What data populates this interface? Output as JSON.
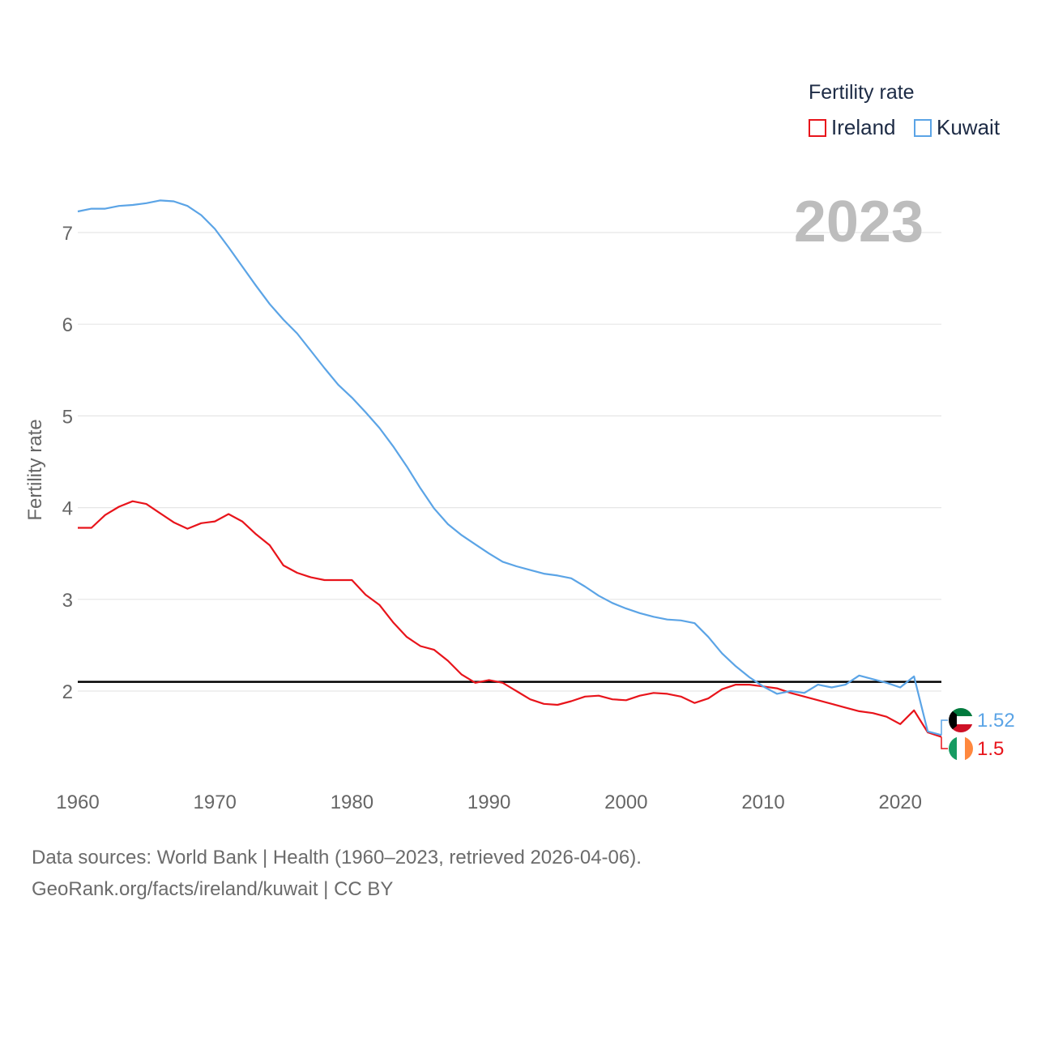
{
  "chart_data": {
    "type": "line",
    "year_label": "2023",
    "ylabel": "Fertility rate",
    "xlabel": "",
    "xlim": [
      1960,
      2023
    ],
    "ylim": [
      1.1,
      7.6
    ],
    "x_ticks": [
      1960,
      1970,
      1980,
      1990,
      2000,
      2010,
      2020
    ],
    "y_ticks": [
      2,
      3,
      4,
      5,
      6,
      7
    ],
    "reference_line": 2.1,
    "legend": {
      "title": "Fertility rate",
      "placement": "top-right"
    },
    "x": [
      1960,
      1961,
      1962,
      1963,
      1964,
      1965,
      1966,
      1967,
      1968,
      1969,
      1970,
      1971,
      1972,
      1973,
      1974,
      1975,
      1976,
      1977,
      1978,
      1979,
      1980,
      1981,
      1982,
      1983,
      1984,
      1985,
      1986,
      1987,
      1988,
      1989,
      1990,
      1991,
      1992,
      1993,
      1994,
      1995,
      1996,
      1997,
      1998,
      1999,
      2000,
      2001,
      2002,
      2003,
      2004,
      2005,
      2006,
      2007,
      2008,
      2009,
      2010,
      2011,
      2012,
      2013,
      2014,
      2015,
      2016,
      2017,
      2018,
      2019,
      2020,
      2021,
      2022,
      2023
    ],
    "series": [
      {
        "name": "Ireland",
        "color": "#e8141b",
        "end_label": "1.5",
        "values": [
          3.78,
          3.78,
          3.92,
          4.01,
          4.07,
          4.04,
          3.94,
          3.84,
          3.77,
          3.83,
          3.85,
          3.93,
          3.85,
          3.71,
          3.59,
          3.37,
          3.29,
          3.24,
          3.21,
          3.21,
          3.21,
          3.05,
          2.94,
          2.75,
          2.59,
          2.49,
          2.45,
          2.33,
          2.18,
          2.09,
          2.12,
          2.09,
          2.0,
          1.91,
          1.86,
          1.85,
          1.89,
          1.94,
          1.95,
          1.91,
          1.9,
          1.95,
          1.98,
          1.97,
          1.94,
          1.87,
          1.92,
          2.02,
          2.07,
          2.07,
          2.05,
          2.03,
          1.98,
          1.94,
          1.9,
          1.86,
          1.82,
          1.78,
          1.76,
          1.72,
          1.64,
          1.79,
          1.55,
          1.5
        ]
      },
      {
        "name": "Kuwait",
        "color": "#5ba4e6",
        "end_label": "1.52",
        "values": [
          7.23,
          7.26,
          7.26,
          7.29,
          7.3,
          7.32,
          7.35,
          7.34,
          7.29,
          7.19,
          7.04,
          6.84,
          6.63,
          6.42,
          6.22,
          6.05,
          5.9,
          5.71,
          5.52,
          5.34,
          5.2,
          5.04,
          4.87,
          4.67,
          4.45,
          4.21,
          3.99,
          3.82,
          3.7,
          3.6,
          3.5,
          3.41,
          3.36,
          3.32,
          3.28,
          3.26,
          3.23,
          3.14,
          3.04,
          2.96,
          2.9,
          2.85,
          2.81,
          2.78,
          2.77,
          2.74,
          2.59,
          2.41,
          2.27,
          2.15,
          2.05,
          1.97,
          2.0,
          1.98,
          2.07,
          2.04,
          2.07,
          2.17,
          2.13,
          2.09,
          2.04,
          2.16,
          1.56,
          1.52
        ]
      }
    ]
  },
  "flags": {
    "kuwait": "kuwait-flag-icon",
    "ireland": "ireland-flag-icon"
  },
  "footer": {
    "line1": "Data sources: World Bank | Health (1960–2023, retrieved 2026-04-06).",
    "line2": "GeoRank.org/facts/ireland/kuwait | CC BY"
  }
}
